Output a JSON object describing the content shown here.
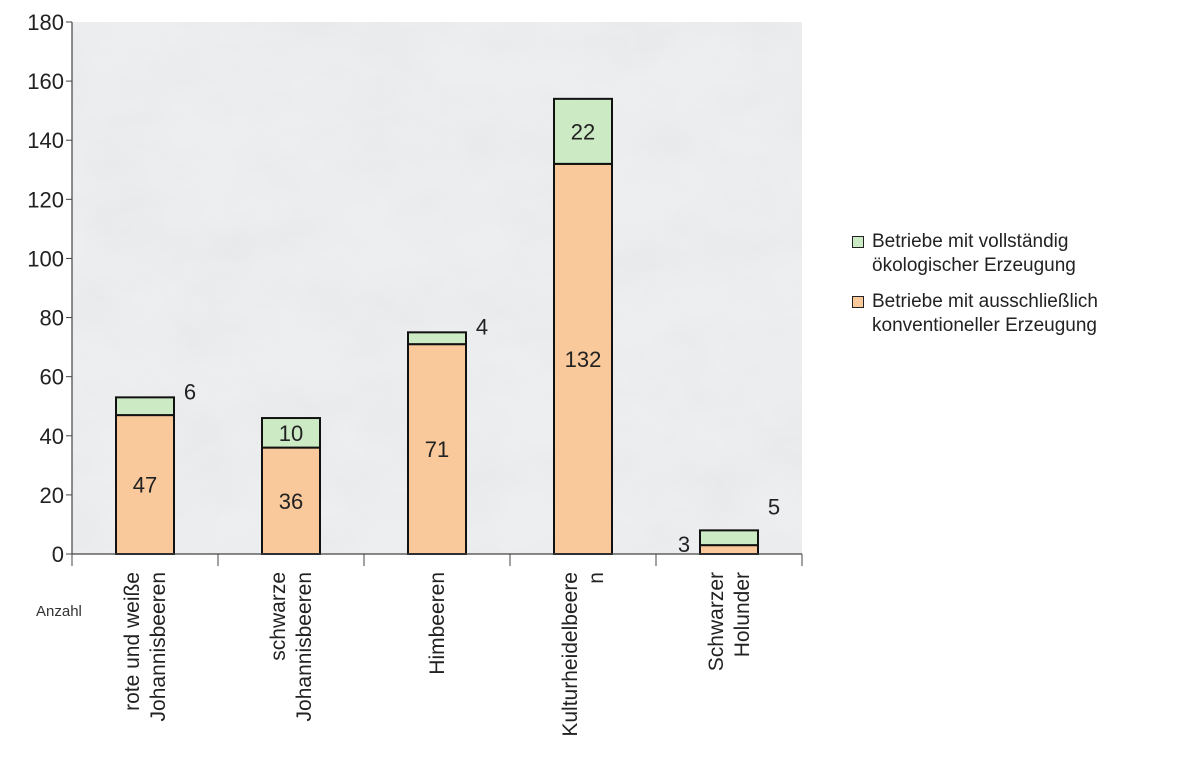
{
  "chart_data": {
    "type": "bar",
    "stacked": true,
    "categories": [
      "rote und weiße\nJohannisbeeren",
      "schwarze\nJohannisbeeren",
      "Himbeeren",
      "Kulturheidelbeere\nn",
      "Schwarzer\nHolunder"
    ],
    "series": [
      {
        "name": "Betriebe mit ausschließlich konventioneller Erzeugung",
        "values": [
          47,
          36,
          71,
          132,
          3
        ],
        "color": "#f9c89b"
      },
      {
        "name": "Betriebe mit vollständig ökologischer Erzeugung",
        "values": [
          6,
          10,
          4,
          22,
          5
        ],
        "color": "#cceac4"
      }
    ],
    "ylim": [
      0,
      180
    ],
    "yticks": [
      0,
      20,
      40,
      60,
      80,
      100,
      120,
      140,
      160,
      180
    ],
    "ylabel": "Anzahl",
    "title": "",
    "xlabel": "",
    "grid": false,
    "legend_position": "right",
    "background": "marble texture"
  },
  "legend": {
    "items": [
      {
        "label": "Betriebe mit vollständig\nökologischer Erzeugung",
        "color": "#cceac4"
      },
      {
        "label": "Betriebe mit ausschließlich\nkonventioneller Erzeugung",
        "color": "#f9c89b"
      }
    ]
  }
}
